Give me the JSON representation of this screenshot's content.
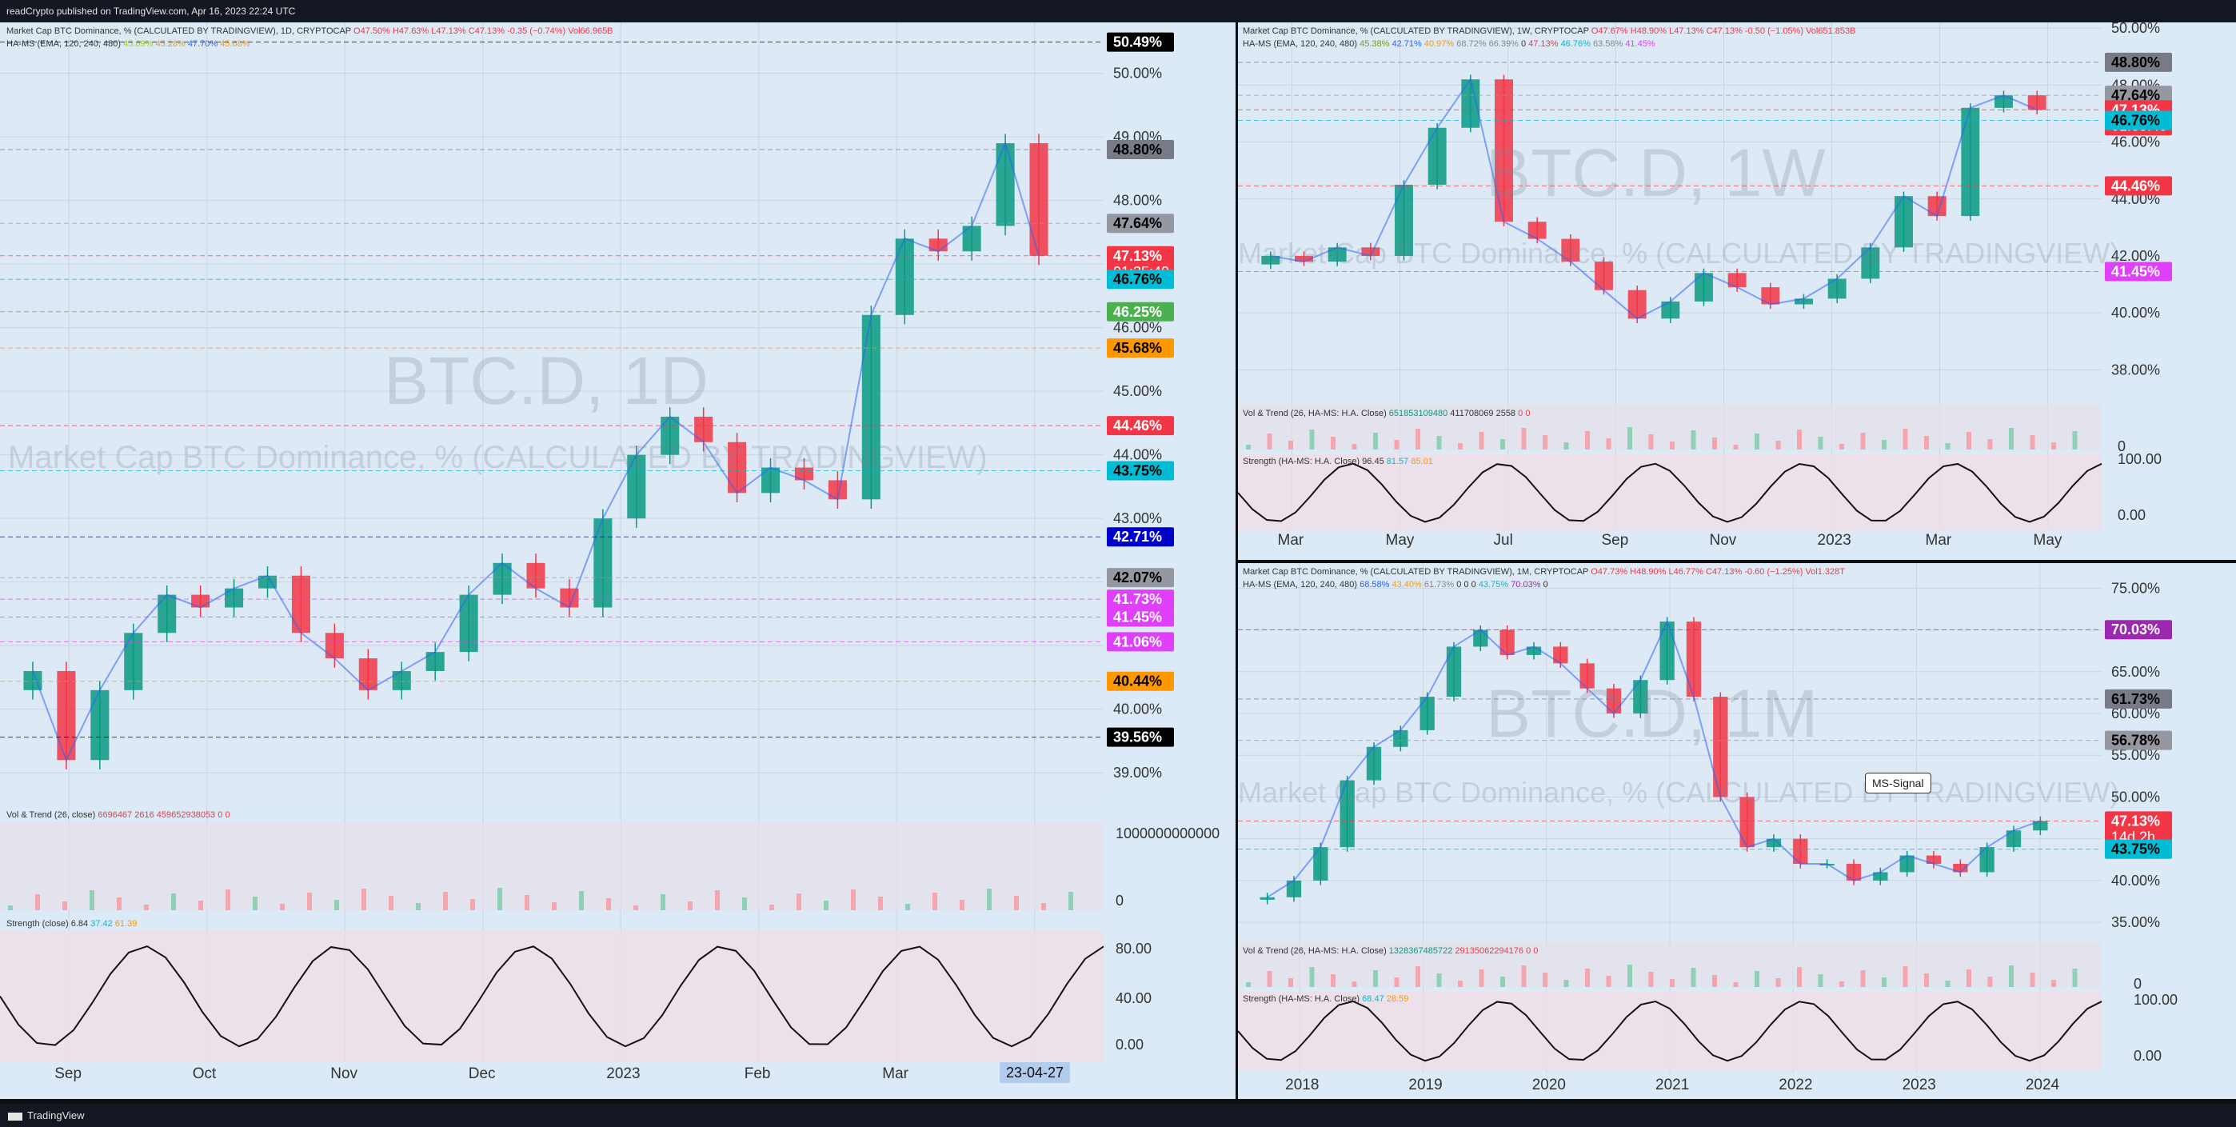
{
  "header": {
    "text": "readCrypto published on TradingView.com, Apr 16, 2023 22:24 UTC"
  },
  "footer": {
    "brand": "TradingView"
  },
  "colors": {
    "up": "#089981",
    "down": "#f23645",
    "pane_bg": "#dce9f7",
    "frame_bg": "#0e0f13"
  },
  "pane_daily": {
    "legend1_title": "Market Cap BTC Dominance, % (CALCULATED BY TRADINGVIEW), 1D, CRYPTOCAP",
    "legend1_o": "O47.50%",
    "legend1_h": "H47.63%",
    "legend1_l": "L47.13%",
    "legend1_c": "C47.13%",
    "legend1_chg": "-0.35 (−0.74%)",
    "legend1_vol": "Vol66.965B",
    "legend2": "HA-MS (EMA, 120, 240, 480)",
    "legend2_vals": [
      "45.69%",
      "45.28%",
      "47.70%",
      "45.68%"
    ],
    "watermark_big": "BTC.D, 1D",
    "watermark_small": "Market Cap BTC Dominance, % (CALCULATED BY TRADINGVIEW)",
    "vol_label": "Vol & Trend (26, close)",
    "vol_vals": [
      "6696467 2616",
      "459652938053",
      "0",
      "0"
    ],
    "strength_label": "Strength (close)",
    "strength_vals": [
      "6.84",
      "37.42",
      "61.39"
    ],
    "vol_axis_top": "1000000000000",
    "vol_axis_zero": "0",
    "strength_axis": [
      "80.00",
      "40.00",
      "0.00"
    ],
    "date_tag": "23-04-27"
  },
  "pane_weekly": {
    "legend1_title": "Market Cap BTC Dominance, % (CALCULATED BY TRADINGVIEW), 1W, CRYPTOCAP",
    "legend1_o": "O47.67%",
    "legend1_h": "H48.90%",
    "legend1_l": "L47.13%",
    "legend1_c": "C47.13%",
    "legend1_chg": "-0.50 (−1.05%)",
    "legend1_vol": "Vol651.853B",
    "legend2": "HA-MS (EMA, 120, 240, 480)",
    "legend2_vals": [
      "45.38%",
      "42.71%",
      "40.97%",
      "68.72%",
      "66.39%",
      "0",
      "47.13%",
      "46.76%",
      "63.58%",
      "41.45%"
    ],
    "watermark_big": "BTC.D, 1W",
    "watermark_small": "Market Cap BTC Dominance, % (CALCULATED BY TRADINGVIEW)",
    "vol_label": "Vol & Trend (26, HA-MS: H.A. Close)",
    "vol_vals": [
      "651853109480",
      "411708069 2558",
      "0",
      "0"
    ],
    "strength_label": "Strength (HA-MS: H.A. Close)",
    "strength_vals": [
      "96.45",
      "81.57",
      "85.01"
    ],
    "vol_axis_zero": "0",
    "strength_axis": [
      "100.00",
      "0.00"
    ]
  },
  "pane_monthly": {
    "legend1_title": "Market Cap BTC Dominance, % (CALCULATED BY TRADINGVIEW), 1M, CRYPTOCAP",
    "legend1_o": "O47.73%",
    "legend1_h": "H48.90%",
    "legend1_l": "L46.77%",
    "legend1_c": "C47.13%",
    "legend1_chg": "-0.60 (−1.25%)",
    "legend1_vol": "Vol1.328T",
    "legend2": "HA-MS (EMA, 120, 240, 480)",
    "legend2_vals": [
      "68.58%",
      "43.40%",
      "61.73%",
      "0",
      "0",
      "0",
      "43.75%",
      "70.03%",
      "0"
    ],
    "watermark_big": "BTC.D, 1M",
    "watermark_small": "Market Cap BTC Dominance, % (CALCULATED BY TRADINGVIEW)",
    "signal_label": "MS-Signal",
    "vol_label": "Vol & Trend (26, HA-MS: H.A. Close)",
    "vol_vals": [
      "1328367485722",
      "29135062294176",
      "0",
      "0"
    ],
    "strength_label": "Strength (HA-MS: H.A. Close)",
    "strength_vals": [
      "68.47",
      "28.59"
    ],
    "vol_axis_zero": "0",
    "strength_axis": [
      "100.00",
      "0.00"
    ]
  },
  "chart_data": [
    {
      "type": "candlestick",
      "title": "BTC.D, 1D",
      "x_tick_labels": [
        "Sep",
        "Oct",
        "Nov",
        "Dec",
        "2023",
        "Feb",
        "Mar",
        "Apr"
      ],
      "y_tick_labels": [
        "50.00%",
        "49.00%",
        "48.00%",
        "47.00%",
        "46.00%",
        "45.00%",
        "44.00%",
        "43.00%",
        "42.00%",
        "41.00%",
        "40.00%",
        "39.00%"
      ],
      "ylim": [
        38.6,
        50.8
      ],
      "close_series": [
        40.6,
        39.2,
        40.3,
        41.2,
        41.8,
        41.6,
        41.9,
        42.1,
        41.2,
        40.8,
        40.3,
        40.6,
        40.9,
        41.8,
        42.3,
        41.9,
        41.6,
        43.0,
        44.0,
        44.6,
        44.2,
        43.4,
        43.8,
        43.6,
        43.3,
        46.2,
        47.4,
        47.2,
        47.6,
        48.9,
        47.13
      ],
      "price_tags": [
        {
          "label": "50.49%",
          "value": 50.49,
          "bg": "#000000",
          "fg": "#ffffff"
        },
        {
          "label": "48.80%",
          "value": 48.8,
          "bg": "#787b86",
          "fg": "#000000"
        },
        {
          "label": "47.64%",
          "value": 47.64,
          "bg": "#9598a1",
          "fg": "#000000"
        },
        {
          "label": "47.13%",
          "value": 47.13,
          "bg": "#f23645",
          "fg": "#ffffff",
          "sub": "01:35:40"
        },
        {
          "label": "46.76%",
          "value": 46.76,
          "bg": "#00bcd4",
          "fg": "#000000"
        },
        {
          "label": "46.25%",
          "value": 46.25,
          "bg": "#4caf50",
          "fg": "#ffffff"
        },
        {
          "label": "45.68%",
          "value": 45.68,
          "bg": "#ff9800",
          "fg": "#000000"
        },
        {
          "label": "44.46%",
          "value": 44.46,
          "bg": "#f23645",
          "fg": "#ffffff"
        },
        {
          "label": "43.75%",
          "value": 43.75,
          "bg": "#00bcd4",
          "fg": "#000000"
        },
        {
          "label": "42.71%",
          "value": 42.71,
          "bg": "#0000cc",
          "fg": "#ffffff"
        },
        {
          "label": "42.07%",
          "value": 42.07,
          "bg": "#9598a1",
          "fg": "#000000"
        },
        {
          "label": "41.73%",
          "value": 41.73,
          "bg": "#e040fb",
          "fg": "#ffffff"
        },
        {
          "label": "41.45%",
          "value": 41.45,
          "bg": "#e040fb",
          "fg": "#ffffff"
        },
        {
          "label": "41.06%",
          "value": 41.06,
          "bg": "#e040fb",
          "fg": "#ffffff"
        },
        {
          "label": "40.44%",
          "value": 40.44,
          "bg": "#ff9800",
          "fg": "#000000"
        },
        {
          "label": "39.56%",
          "value": 39.56,
          "bg": "#000000",
          "fg": "#ffffff"
        }
      ]
    },
    {
      "type": "candlestick",
      "title": "BTC.D, 1W",
      "x_tick_labels": [
        "Mar",
        "May",
        "Jul",
        "Sep",
        "Nov",
        "2023",
        "Mar",
        "May"
      ],
      "y_tick_labels": [
        "50.00%",
        "48.00%",
        "46.00%",
        "44.00%",
        "42.00%",
        "40.00%",
        "38.00%"
      ],
      "ylim": [
        37.0,
        50.2
      ],
      "close_series": [
        42.0,
        41.8,
        42.3,
        42.0,
        44.5,
        46.5,
        48.2,
        43.2,
        42.6,
        41.8,
        40.8,
        39.8,
        40.4,
        41.4,
        40.9,
        40.3,
        40.5,
        41.2,
        42.3,
        44.1,
        43.4,
        47.2,
        47.64,
        47.13
      ],
      "price_tags": [
        {
          "label": "48.80%",
          "value": 48.8,
          "bg": "#787b86",
          "fg": "#000000"
        },
        {
          "label": "47.64%",
          "value": 47.64,
          "bg": "#9598a1",
          "fg": "#000000"
        },
        {
          "label": "47.13%",
          "value": 47.13,
          "bg": "#f23645",
          "fg": "#ffffff",
          "sub": "01:35:40"
        },
        {
          "label": "46.76%",
          "value": 46.76,
          "bg": "#00bcd4",
          "fg": "#000000"
        },
        {
          "label": "44.46%",
          "value": 44.46,
          "bg": "#f23645",
          "fg": "#ffffff"
        },
        {
          "label": "41.45%",
          "value": 41.45,
          "bg": "#e040fb",
          "fg": "#ffffff"
        }
      ]
    },
    {
      "type": "candlestick",
      "title": "BTC.D, 1M",
      "x_tick_labels": [
        "2018",
        "2019",
        "2020",
        "2021",
        "2022",
        "2023",
        "2024"
      ],
      "y_tick_labels": [
        "75.00%",
        "70.00%",
        "65.00%",
        "60.00%",
        "55.00%",
        "50.00%",
        "45.00%",
        "40.00%",
        "35.00%"
      ],
      "ylim": [
        33.0,
        78.0
      ],
      "close_series": [
        38,
        40,
        44,
        52,
        56,
        58,
        62,
        68,
        70,
        67,
        68,
        66,
        63,
        60,
        64,
        71,
        62,
        50,
        44,
        45,
        42,
        42,
        40,
        41,
        43,
        42,
        41,
        44,
        46,
        47.13
      ],
      "price_tags": [
        {
          "label": "70.03%",
          "value": 70.03,
          "bg": "#9c27b0",
          "fg": "#ffffff"
        },
        {
          "label": "61.73%",
          "value": 61.73,
          "bg": "#787b86",
          "fg": "#000000"
        },
        {
          "label": "56.78%",
          "value": 56.78,
          "bg": "#9598a1",
          "fg": "#000000"
        },
        {
          "label": "47.13%",
          "value": 47.13,
          "bg": "#f23645",
          "fg": "#ffffff",
          "sub": "14d 2h"
        },
        {
          "label": "43.75%",
          "value": 43.75,
          "bg": "#00bcd4",
          "fg": "#000000"
        }
      ]
    }
  ]
}
